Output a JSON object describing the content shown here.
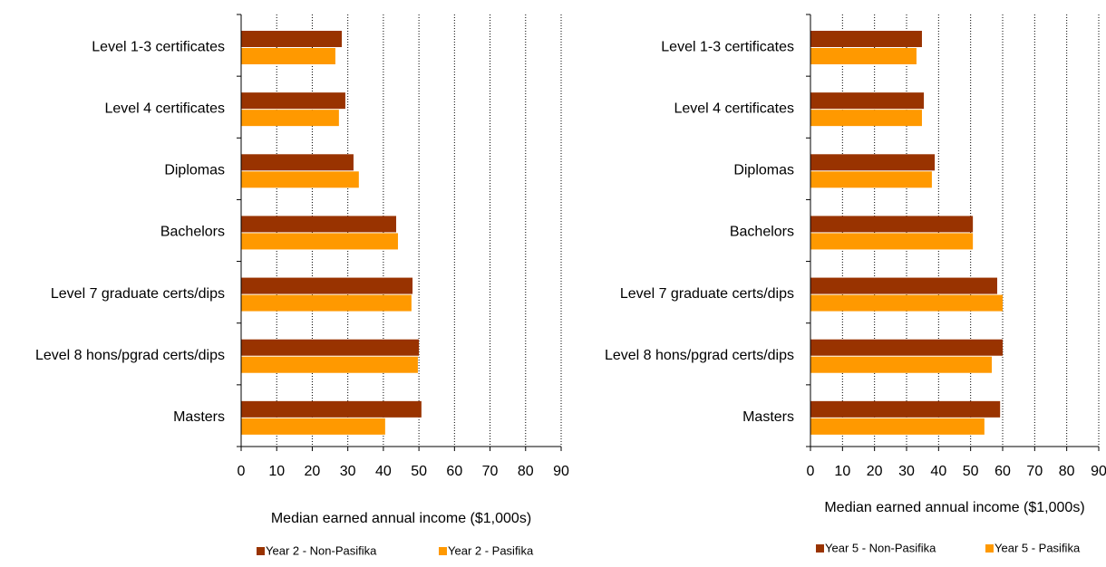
{
  "chart_data": [
    {
      "type": "bar",
      "orientation": "horizontal",
      "categories": [
        "Level 1-3 certificates",
        "Level 4 certificates",
        "Diplomas",
        "Bachelors",
        "Level 7 graduate certs/dips",
        "Level 8 hons/pgrad certs/dips",
        "Masters"
      ],
      "series": [
        {
          "name": "Year 2 - Non-Pasifika",
          "color": "#993300",
          "values": [
            28.3,
            29.3,
            31.6,
            43.6,
            48.2,
            50.0,
            50.7
          ]
        },
        {
          "name": "Year 2 - Pasifika",
          "color": "#ff9900",
          "values": [
            26.5,
            27.5,
            33.1,
            44.1,
            47.9,
            49.7,
            40.5
          ]
        }
      ],
      "xlim": [
        0,
        90
      ],
      "xticks": [
        0,
        10,
        20,
        30,
        40,
        50,
        60,
        70,
        80,
        90
      ],
      "x_label": "Median earned annual income  ($1,000s)",
      "grid": true,
      "legend": "bottom"
    },
    {
      "type": "bar",
      "orientation": "horizontal",
      "categories": [
        "Level 1-3 certificates",
        "Level 4 certificates",
        "Diplomas",
        "Bachelors",
        "Level 7 graduate certs/dips",
        "Level 8 hons/pgrad certs/dips",
        "Masters"
      ],
      "series": [
        {
          "name": "Year 5 - Non-Pasifika",
          "color": "#993300",
          "values": [
            34.8,
            35.4,
            38.8,
            50.7,
            58.3,
            60.0,
            59.2
          ]
        },
        {
          "name": "Year 5 - Pasifika",
          "color": "#ff9900",
          "values": [
            33.1,
            34.8,
            37.9,
            50.7,
            60.0,
            56.6,
            54.3
          ]
        }
      ],
      "xlim": [
        0,
        90
      ],
      "xticks": [
        0,
        10,
        20,
        30,
        40,
        50,
        60,
        70,
        80,
        90
      ],
      "x_label": "Median earned annual income  ($1,000s)",
      "grid": true,
      "legend": "bottom"
    }
  ]
}
